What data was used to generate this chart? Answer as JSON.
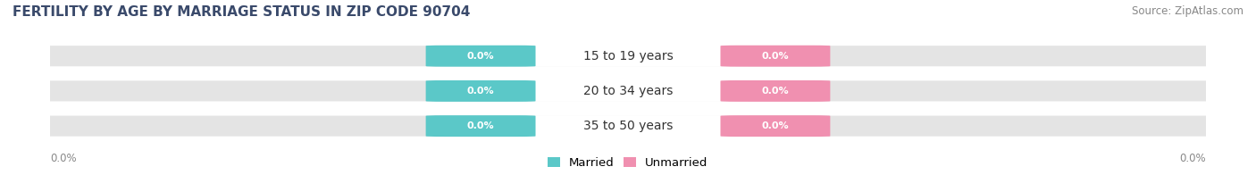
{
  "title": "FERTILITY BY AGE BY MARRIAGE STATUS IN ZIP CODE 90704",
  "source": "Source: ZipAtlas.com",
  "categories": [
    "15 to 19 years",
    "20 to 34 years",
    "35 to 50 years"
  ],
  "married_values": [
    0.0,
    0.0,
    0.0
  ],
  "unmarried_values": [
    0.0,
    0.0,
    0.0
  ],
  "married_color": "#5bc8c8",
  "unmarried_color": "#f090b0",
  "bar_bg_color": "#e4e4e4",
  "title_fontsize": 11,
  "source_fontsize": 8.5,
  "label_fontsize": 8,
  "category_fontsize": 10,
  "legend_fontsize": 9.5,
  "x_tick_left": "0.0%",
  "x_tick_right": "0.0%",
  "background_color": "#ffffff",
  "title_color": "#3a4a6b",
  "source_color": "#888888",
  "tick_color": "#888888",
  "cat_label_color": "#333333"
}
